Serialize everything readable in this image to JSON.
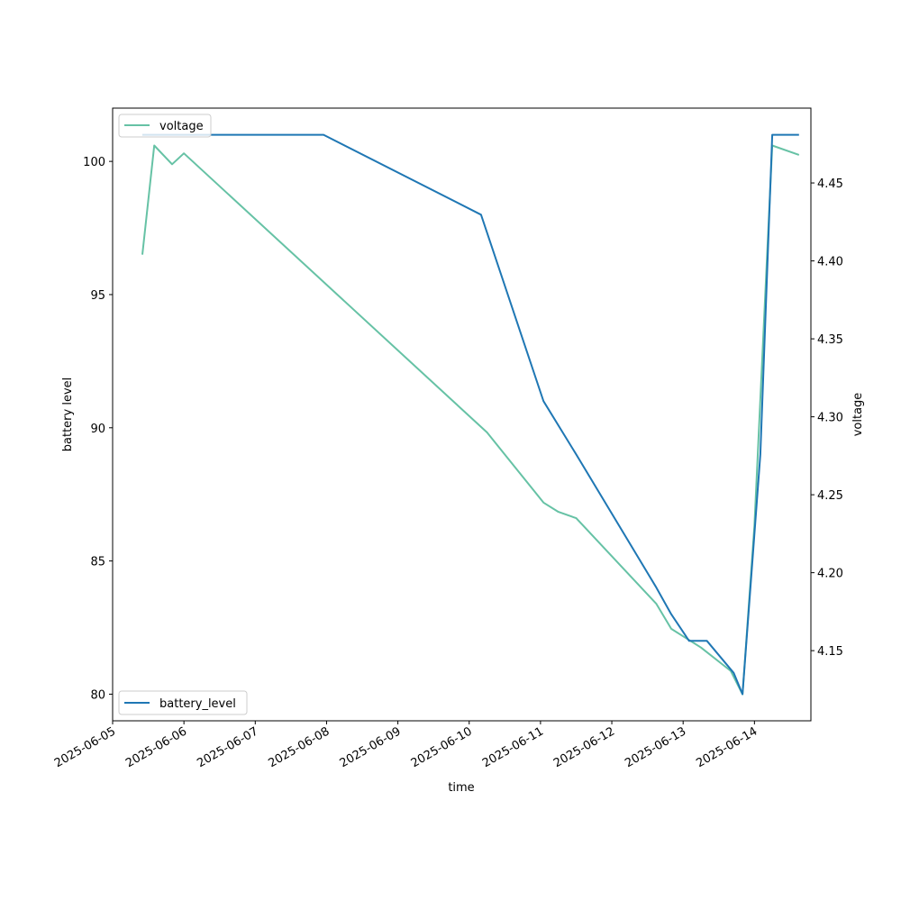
{
  "chart_data": {
    "type": "line",
    "title": "",
    "xlabel": "time",
    "ylabel_left": "battery level",
    "ylabel_right": "voltage",
    "x_ticks": [
      "2025-06-05",
      "2025-06-06",
      "2025-06-07",
      "2025-06-08",
      "2025-06-09",
      "2025-06-10",
      "2025-06-11",
      "2025-06-12",
      "2025-06-13",
      "2025-06-14"
    ],
    "x_range": [
      "2025-06-05T00:00",
      "2025-06-14T19:00"
    ],
    "y_left": {
      "ticks": [
        80,
        85,
        90,
        95,
        100
      ],
      "lim": [
        79,
        102
      ]
    },
    "y_right": {
      "ticks": [
        4.15,
        4.2,
        4.25,
        4.3,
        4.35,
        4.4,
        4.45
      ],
      "lim": [
        4.105,
        4.498
      ]
    },
    "grid": false,
    "series": [
      {
        "name": "battery_level",
        "axis": "left",
        "color": "#1f77b4",
        "points": [
          [
            "2025-06-05T10:00",
            101
          ],
          [
            "2025-06-07T23:00",
            101
          ],
          [
            "2025-06-10T04:00",
            98
          ],
          [
            "2025-06-11T01:00",
            91
          ],
          [
            "2025-06-11T12:00",
            89
          ],
          [
            "2025-06-12T15:00",
            84
          ],
          [
            "2025-06-12T20:00",
            83
          ],
          [
            "2025-06-13T02:00",
            82
          ],
          [
            "2025-06-13T08:00",
            82
          ],
          [
            "2025-06-13T17:00",
            80.8
          ],
          [
            "2025-06-13T20:00",
            80
          ],
          [
            "2025-06-14T02:00",
            89
          ],
          [
            "2025-06-14T06:00",
            101
          ],
          [
            "2025-06-14T15:00",
            101
          ]
        ],
        "legend_position": "lower left"
      },
      {
        "name": "voltage",
        "axis": "right",
        "color": "#66c2a5",
        "points": [
          [
            "2025-06-05T10:00",
            4.404
          ],
          [
            "2025-06-05T14:00",
            4.474
          ],
          [
            "2025-06-05T20:00",
            4.462
          ],
          [
            "2025-06-06T00:00",
            4.469
          ],
          [
            "2025-06-10T06:00",
            4.29
          ],
          [
            "2025-06-11T01:00",
            4.245
          ],
          [
            "2025-06-11T06:00",
            4.239
          ],
          [
            "2025-06-11T12:00",
            4.235
          ],
          [
            "2025-06-12T15:00",
            4.18
          ],
          [
            "2025-06-12T20:00",
            4.164
          ],
          [
            "2025-06-13T06:00",
            4.152
          ],
          [
            "2025-06-13T16:00",
            4.137
          ],
          [
            "2025-06-13T20:00",
            4.122
          ],
          [
            "2025-06-14T00:00",
            4.23
          ],
          [
            "2025-06-14T06:00",
            4.474
          ],
          [
            "2025-06-14T15:00",
            4.468
          ]
        ],
        "legend_position": "upper left"
      }
    ]
  }
}
